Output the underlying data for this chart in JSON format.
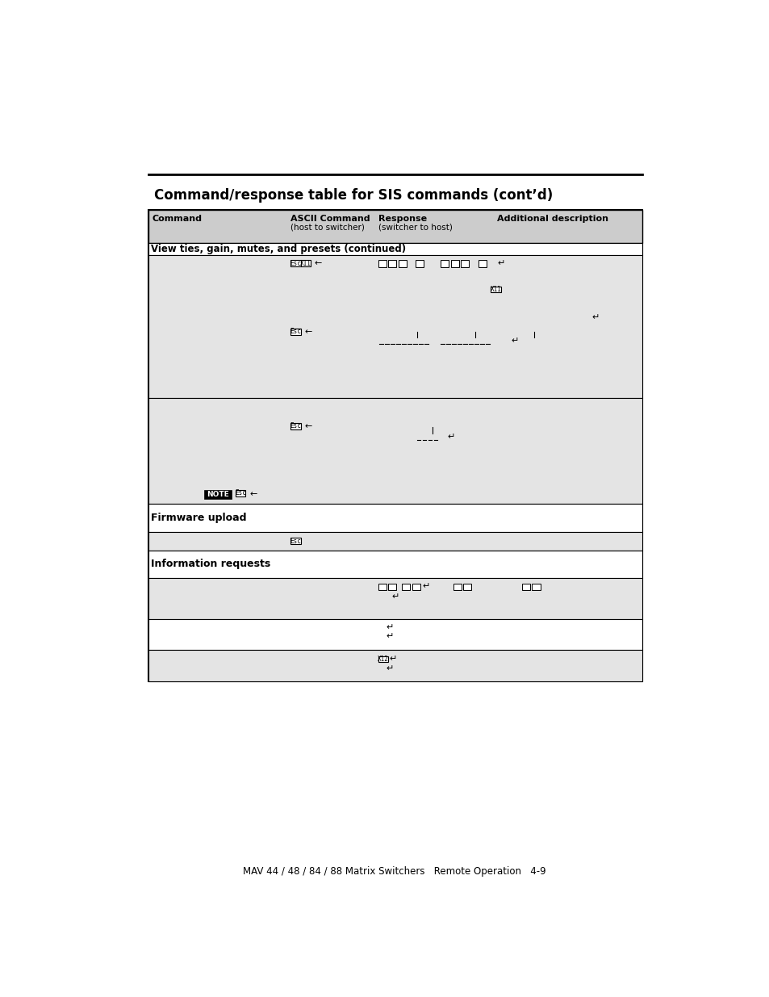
{
  "title_text": "Command/response table for SIS commands (cont’d)",
  "footer_text": "MAV 44 / 48 / 84 / 88 Matrix Switchers   Remote Operation   4-9",
  "col_headers_line1": [
    "Command",
    "ASCII Command",
    "Response",
    "Additional description"
  ],
  "col_headers_line2": [
    "",
    "(host to switcher)",
    "(switcher to host)",
    ""
  ],
  "section1_label": "View ties, gain, mutes, and presets (continued)",
  "firmware_label": "Firmware upload",
  "info_label": "Information requests",
  "bg_gray": "#d8d8d8",
  "bg_light": "#e4e4e4",
  "bg_white": "#ffffff",
  "border": "#000000"
}
